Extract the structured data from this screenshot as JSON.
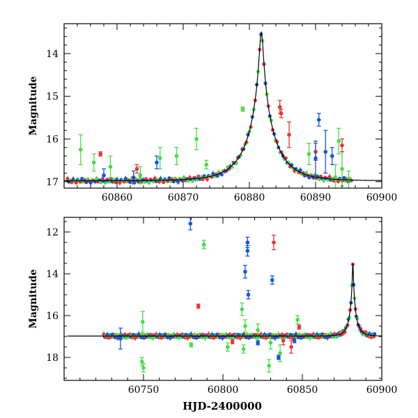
{
  "colors": {
    "green": "#44dd44",
    "red": "#ee3333",
    "blue": "#1155dd",
    "model": "#000000"
  },
  "chart_data": [
    {
      "type": "scatter",
      "title": "",
      "xlabel": "",
      "ylabel": "Magnitude",
      "xlim": [
        60852,
        60900
      ],
      "ylim": [
        17.15,
        13.3
      ],
      "y_inverted": true,
      "xticks": [
        60860,
        60870,
        60880,
        60890,
        60900
      ],
      "yticks": [
        14,
        15,
        16,
        17
      ],
      "model": {
        "t0": 60881.8,
        "peak_mag": 13.5,
        "base_mag": 16.98,
        "tE": 4.4
      },
      "series": [
        {
          "color": "green",
          "points": [
            [
              60854.5,
              16.25,
              0.35
            ],
            [
              60856.5,
              16.55,
              0.2
            ],
            [
              60859.0,
              16.65,
              0.25
            ],
            [
              60863.5,
              16.85,
              0.2
            ],
            [
              60866.5,
              16.45,
              0.25
            ],
            [
              60869.0,
              16.4,
              0.2
            ],
            [
              60872.0,
              16.0,
              0.25
            ],
            [
              60873.5,
              16.6,
              0.1
            ],
            [
              60879.0,
              15.3,
              0.05
            ],
            [
              60889.0,
              16.35,
              0.25
            ],
            [
              60893.5,
              16.05,
              0.3
            ],
            [
              60894.0,
              16.7,
              0.4
            ],
            [
              60893.0,
              16.9,
              0.3
            ],
            [
              60895.0,
              16.95,
              0.2
            ]
          ]
        },
        {
          "color": "red",
          "points": [
            [
              60857.5,
              16.35,
              0.05
            ],
            [
              60863.0,
              16.7,
              0.1
            ],
            [
              60884.6,
              15.25,
              0.15
            ],
            [
              60884.8,
              15.4,
              0.1
            ],
            [
              60886.0,
              15.9,
              0.3
            ],
            [
              60890.0,
              16.3,
              0.2
            ],
            [
              60894.0,
              16.15,
              0.15
            ]
          ]
        },
        {
          "color": "blue",
          "points": [
            [
              60858.0,
              16.85,
              0.15
            ],
            [
              60862.5,
              16.9,
              0.15
            ],
            [
              60866.0,
              16.55,
              0.15
            ],
            [
              60890.0,
              16.45,
              0.4
            ],
            [
              60890.5,
              15.55,
              0.15
            ],
            [
              60891.5,
              16.3,
              0.5
            ],
            [
              60892.5,
              16.4,
              0.2
            ]
          ]
        }
      ]
    },
    {
      "type": "scatter",
      "title": "",
      "xlabel": "HJD-2400000",
      "ylabel": "Magnitude",
      "xlim": [
        60700,
        60900
      ],
      "ylim": [
        19.1,
        11.3
      ],
      "y_inverted": true,
      "xticks": [
        60750,
        60800,
        60850,
        60900
      ],
      "yticks": [
        12,
        14,
        16,
        18
      ],
      "model": {
        "t0": 60881.8,
        "peak_mag": 13.5,
        "base_mag": 16.98,
        "tE": 4.4
      },
      "series": [
        {
          "color": "green",
          "points": [
            [
              60749.0,
              18.2,
              0.2
            ],
            [
              60750.0,
              18.5,
              0.2
            ],
            [
              60749.5,
              16.3,
              0.5
            ],
            [
              60788.0,
              12.6,
              0.2
            ],
            [
              60812.0,
              15.7,
              0.3
            ],
            [
              60814.0,
              16.5,
              0.3
            ],
            [
              60822.0,
              16.7,
              0.3
            ],
            [
              60829.0,
              18.4,
              0.3
            ],
            [
              60836.0,
              17.8,
              0.4
            ],
            [
              60847.0,
              16.2,
              0.2
            ],
            [
              60830.0,
              17.3,
              0.3
            ],
            [
              60803.0,
              17.5,
              0.2
            ],
            [
              60813.0,
              17.6,
              0.2
            ],
            [
              60780.0,
              17.4,
              0.1
            ]
          ]
        },
        {
          "color": "red",
          "points": [
            [
              60784.5,
              15.55,
              0.1
            ],
            [
              60832.0,
              12.5,
              0.35
            ],
            [
              60838.0,
              17.2,
              0.2
            ],
            [
              60843.0,
              17.5,
              0.3
            ],
            [
              60806.0,
              17.25,
              0.1
            ],
            [
              60848.0,
              16.55,
              0.1
            ]
          ]
        },
        {
          "color": "blue",
          "points": [
            [
              60779.5,
              11.6,
              0.3
            ],
            [
              60814.0,
              13.9,
              0.3
            ],
            [
              60815.5,
              12.5,
              0.25
            ],
            [
              60815.5,
              12.9,
              0.25
            ],
            [
              60816.0,
              15.0,
              0.2
            ],
            [
              60831.0,
              14.3,
              0.2
            ],
            [
              60735.5,
              17.1,
              0.5
            ],
            [
              60835.0,
              18.0,
              0.1
            ],
            [
              60822.0,
              17.3,
              0.1
            ],
            [
              60845.0,
              17.2,
              0.1
            ]
          ]
        }
      ]
    }
  ]
}
